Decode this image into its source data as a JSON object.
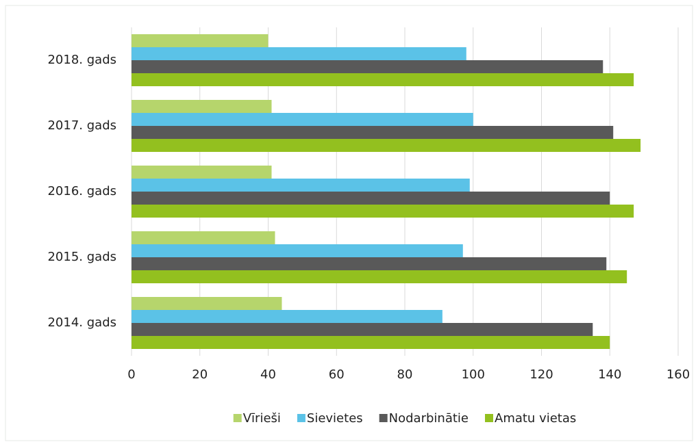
{
  "chart_data": {
    "type": "hbar",
    "categories": [
      "2018. gads",
      "2017. gads",
      "2016. gads",
      "2015. gads",
      "2014. gads"
    ],
    "series": [
      {
        "name": "Vīrieši",
        "color": "#b6d56c",
        "values": [
          40,
          41,
          41,
          42,
          44
        ]
      },
      {
        "name": "Sievietes",
        "color": "#5bc2e7",
        "values": [
          98,
          100,
          99,
          97,
          91
        ]
      },
      {
        "name": "Nodarbinātie",
        "color": "#595959",
        "values": [
          138,
          141,
          140,
          139,
          135
        ]
      },
      {
        "name": "Amatu vietas",
        "color": "#93c01f",
        "values": [
          147,
          149,
          147,
          145,
          140
        ]
      }
    ],
    "xlim": [
      0,
      160
    ],
    "xticks": [
      0,
      20,
      40,
      60,
      80,
      100,
      120,
      140,
      160
    ],
    "grid": true,
    "legend": "bottom"
  }
}
